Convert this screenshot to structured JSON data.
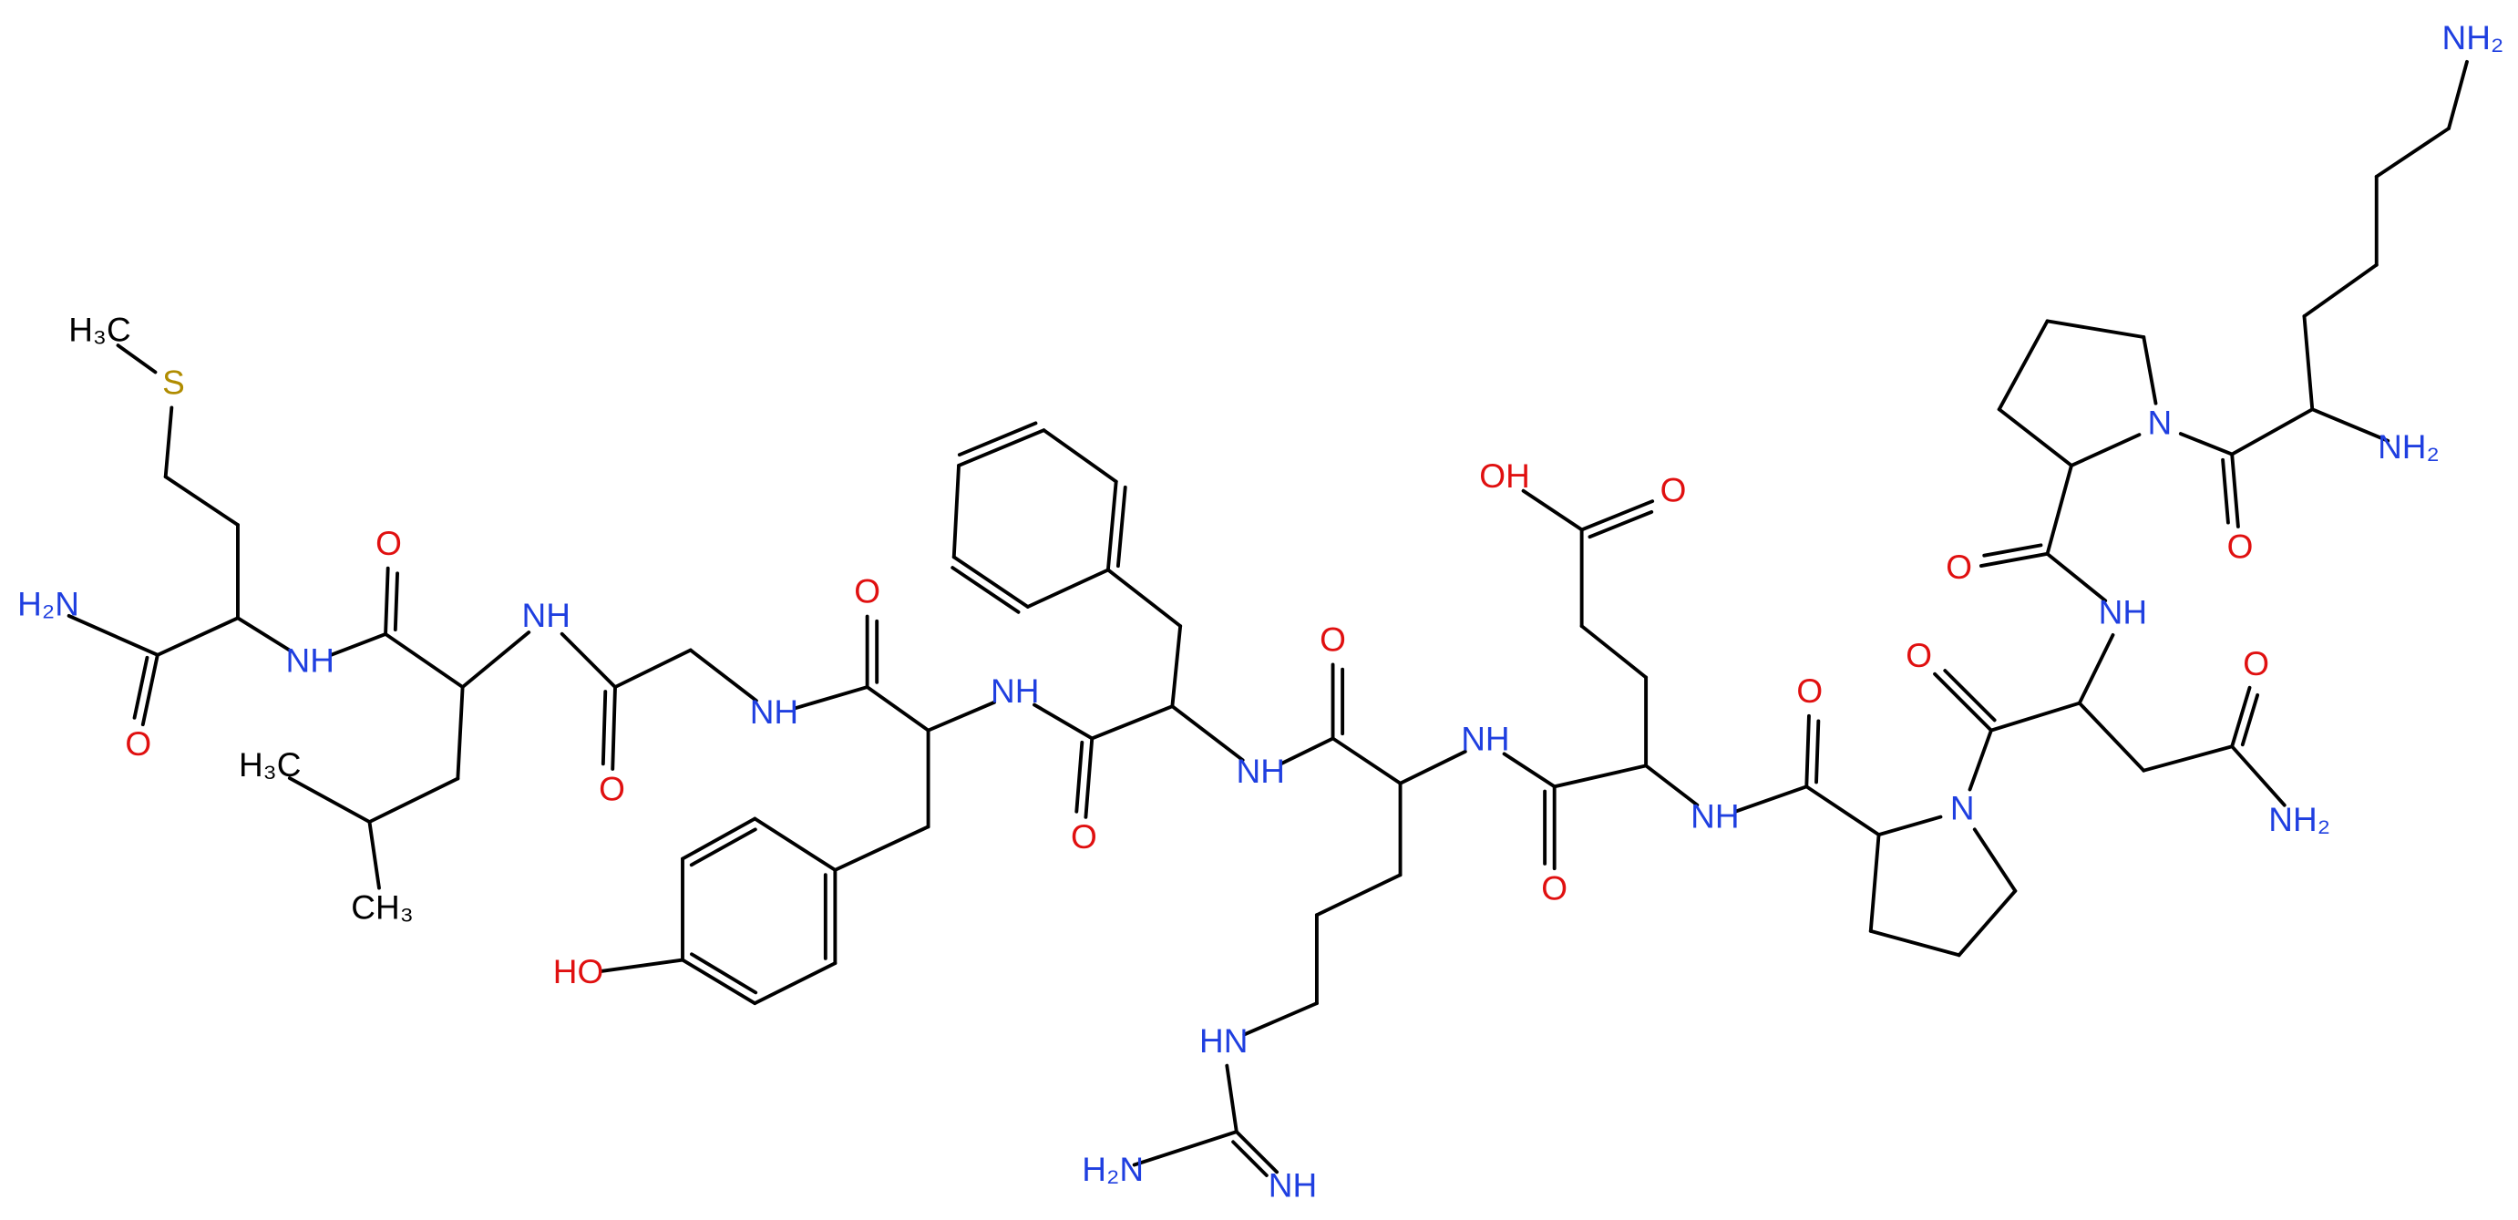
{
  "atoms": [
    "H₃C",
    "S",
    "H₂N",
    "O",
    "NH",
    "O",
    "H₃C",
    "CH₃",
    "NH",
    "O",
    "NH",
    "O",
    "HO",
    "NH",
    "O",
    "NH",
    "O",
    "HN",
    "H₂N",
    "NH",
    "NH",
    "O",
    "OH",
    "O",
    "NH",
    "O",
    "N",
    "O",
    "O",
    "NH₂",
    "NH",
    "O",
    "N",
    "O",
    "NH₂",
    "NH₂"
  ]
}
